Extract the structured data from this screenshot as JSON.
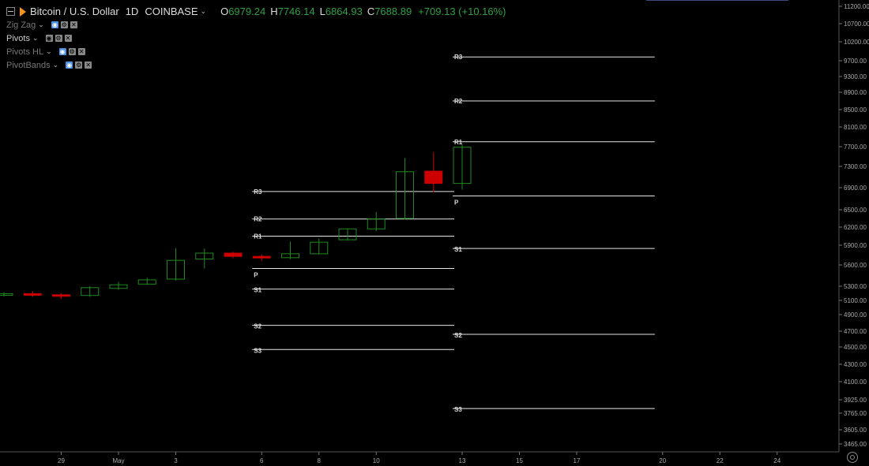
{
  "header": {
    "symbol": "Bitcoin / U.S. Dollar",
    "interval": "1D",
    "exchange": "COINBASE",
    "ohlc": {
      "o_label": "O",
      "o": "6979.24",
      "h_label": "H",
      "h": "7746.14",
      "l_label": "L",
      "l": "6864.93",
      "c_label": "C",
      "c": "7688.89",
      "change": "+709.13 (+10.16%)"
    }
  },
  "indicators": [
    {
      "name": "Zig Zag",
      "active": false
    },
    {
      "name": "Pivots",
      "active": true
    },
    {
      "name": "Pivots HL",
      "active": false
    },
    {
      "name": "PivotBands",
      "active": false
    }
  ],
  "colors": {
    "up": "#1f8a1f",
    "down": "#cc0000",
    "pivot_line": "#e6e6e6",
    "axis_text": "#aaaaaa",
    "background": "#000000"
  },
  "chart_data": {
    "type": "candlestick",
    "price_axis": {
      "ticks": [
        3465,
        3605,
        3765,
        3925,
        4100,
        4300,
        4500,
        4700,
        4900,
        5100,
        5300,
        5600,
        5900,
        6200,
        6500,
        6900,
        7300,
        7700,
        8100,
        8500,
        8900,
        9300,
        9700,
        10200,
        10700,
        11200
      ],
      "tick_labels": [
        "3465.00",
        "3605.00",
        "3765.00",
        "3925.00",
        "4100.00",
        "4300.00",
        "4500.00",
        "4700.00",
        "4900.00",
        "5100.00",
        "5300.00",
        "5600.00",
        "5900.00",
        "6200.00",
        "6500.00",
        "6900.00",
        "7300.00",
        "7700.00",
        "8100.00",
        "8500.00",
        "8900.00",
        "9300.00",
        "9700.00",
        "10200.00",
        "10700.00",
        "11200.00"
      ]
    },
    "time_axis": {
      "labels": [
        "29",
        "May",
        "3",
        "6",
        "8",
        "10",
        "13",
        "15",
        "17",
        "20",
        "22",
        "24"
      ],
      "day_index": [
        2,
        4,
        6,
        9,
        11,
        13,
        16,
        18,
        20,
        23,
        25,
        27
      ]
    },
    "candles": [
      {
        "d": 0,
        "o": 5180,
        "h": 5215,
        "l": 5155,
        "c": 5195
      },
      {
        "d": 1,
        "o": 5195,
        "h": 5230,
        "l": 5150,
        "c": 5180
      },
      {
        "d": 2,
        "o": 5180,
        "h": 5200,
        "l": 5120,
        "c": 5160
      },
      {
        "d": 3,
        "o": 5170,
        "h": 5300,
        "l": 5150,
        "c": 5280
      },
      {
        "d": 4,
        "o": 5270,
        "h": 5360,
        "l": 5250,
        "c": 5320
      },
      {
        "d": 5,
        "o": 5330,
        "h": 5420,
        "l": 5320,
        "c": 5390
      },
      {
        "d": 6,
        "o": 5400,
        "h": 5850,
        "l": 5380,
        "c": 5670
      },
      {
        "d": 7,
        "o": 5690,
        "h": 5850,
        "l": 5550,
        "c": 5780
      },
      {
        "d": 8,
        "o": 5780,
        "h": 5800,
        "l": 5700,
        "c": 5730
      },
      {
        "d": 9,
        "o": 5730,
        "h": 5760,
        "l": 5660,
        "c": 5710
      },
      {
        "d": 10,
        "o": 5710,
        "h": 5960,
        "l": 5690,
        "c": 5770
      },
      {
        "d": 11,
        "o": 5770,
        "h": 6010,
        "l": 5760,
        "c": 5950
      },
      {
        "d": 12,
        "o": 5990,
        "h": 6180,
        "l": 5980,
        "c": 6170
      },
      {
        "d": 13,
        "o": 6170,
        "h": 6460,
        "l": 6130,
        "c": 6340
      },
      {
        "d": 14,
        "o": 6350,
        "h": 7470,
        "l": 6330,
        "c": 7200
      },
      {
        "d": 15,
        "o": 7210,
        "h": 7590,
        "l": 6820,
        "c": 6980
      },
      {
        "d": 16,
        "o": 6980,
        "h": 7746,
        "l": 6865,
        "c": 7689
      }
    ],
    "pivot_sets": [
      {
        "start_day": 9,
        "end_day": 16,
        "levels": [
          {
            "name": "R3",
            "value": 6830
          },
          {
            "name": "R2",
            "value": 6340
          },
          {
            "name": "R1",
            "value": 6050
          },
          {
            "name": "P",
            "value": 5550
          },
          {
            "name": "S1",
            "value": 5260
          },
          {
            "name": "S2",
            "value": 4770
          },
          {
            "name": "S3",
            "value": 4470
          }
        ]
      },
      {
        "start_day": 16,
        "end_day": 23,
        "levels": [
          {
            "name": "R3",
            "value": 9800
          },
          {
            "name": "R2",
            "value": 8700
          },
          {
            "name": "R1",
            "value": 7800
          },
          {
            "name": "P",
            "value": 6750
          },
          {
            "name": "S1",
            "value": 5850
          },
          {
            "name": "S2",
            "value": 4660
          },
          {
            "name": "S3",
            "value": 3820
          }
        ]
      }
    ]
  }
}
